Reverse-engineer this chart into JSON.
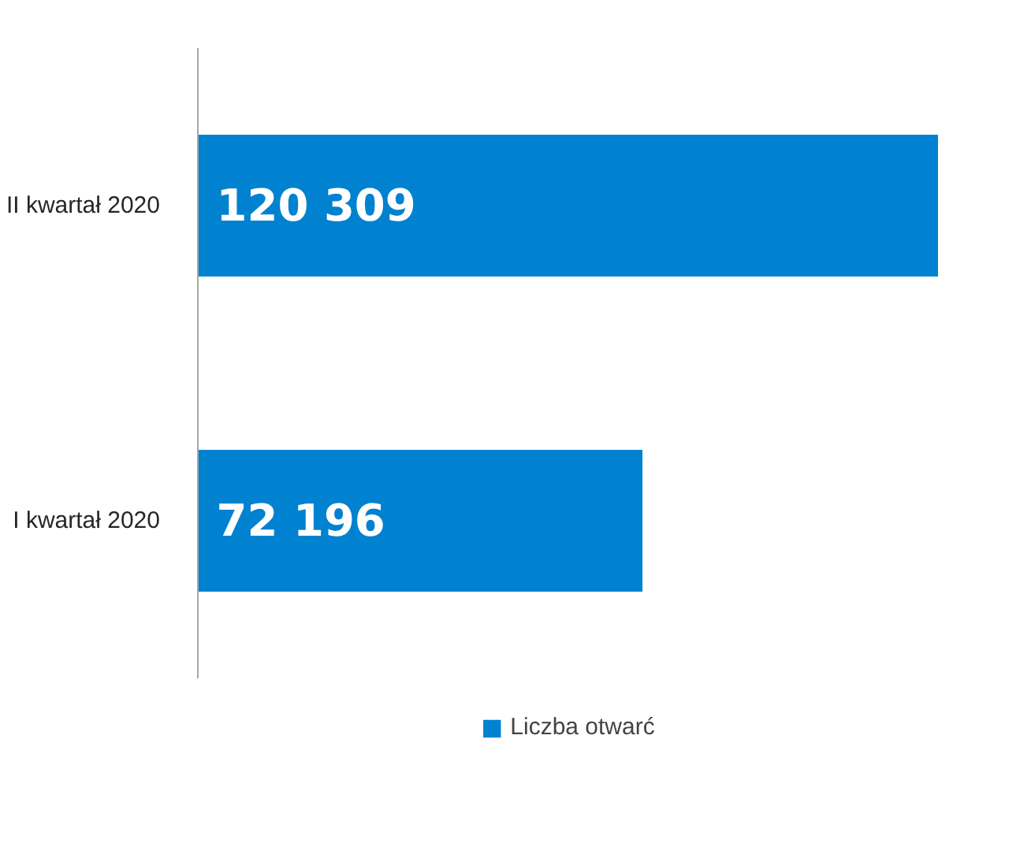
{
  "chart_data": {
    "type": "bar",
    "orientation": "horizontal",
    "categories": [
      "II kwartał 2020",
      "I kwartał 2020"
    ],
    "series": [
      {
        "name": "Liczba otwarć",
        "color": "#0082d0",
        "values": [
          120309,
          72196
        ]
      }
    ],
    "data_labels": true,
    "legend": "bottom",
    "grid": false
  }
}
